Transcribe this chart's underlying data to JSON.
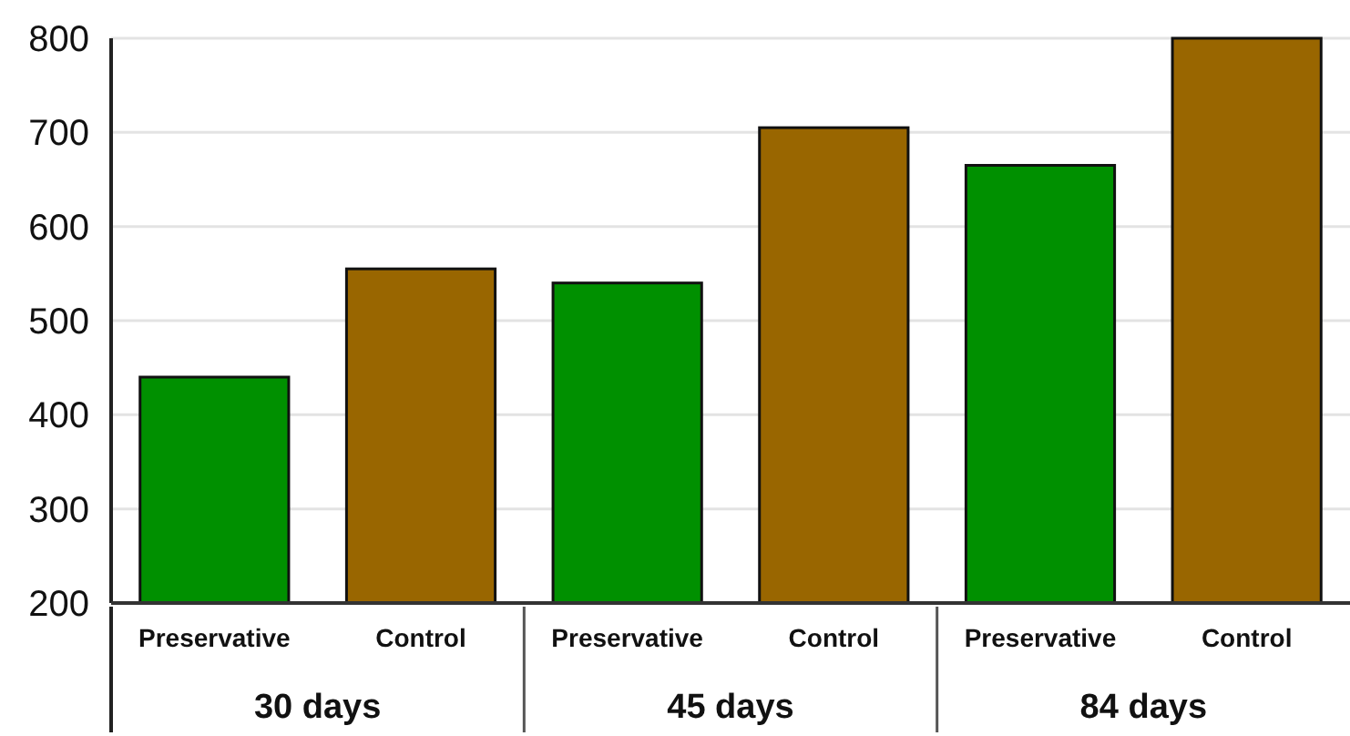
{
  "chart_data": {
    "type": "bar",
    "categories": [
      "30 days",
      "45 days",
      "84 days"
    ],
    "series": [
      {
        "name": "Preservative",
        "color": "#009000",
        "values": [
          440,
          540,
          665
        ]
      },
      {
        "name": "Control",
        "color": "#996600",
        "values": [
          555,
          705,
          800
        ]
      }
    ],
    "ylim": [
      200,
      800
    ],
    "yticks": [
      200,
      300,
      400,
      500,
      600,
      700,
      800
    ],
    "grid": "y"
  }
}
